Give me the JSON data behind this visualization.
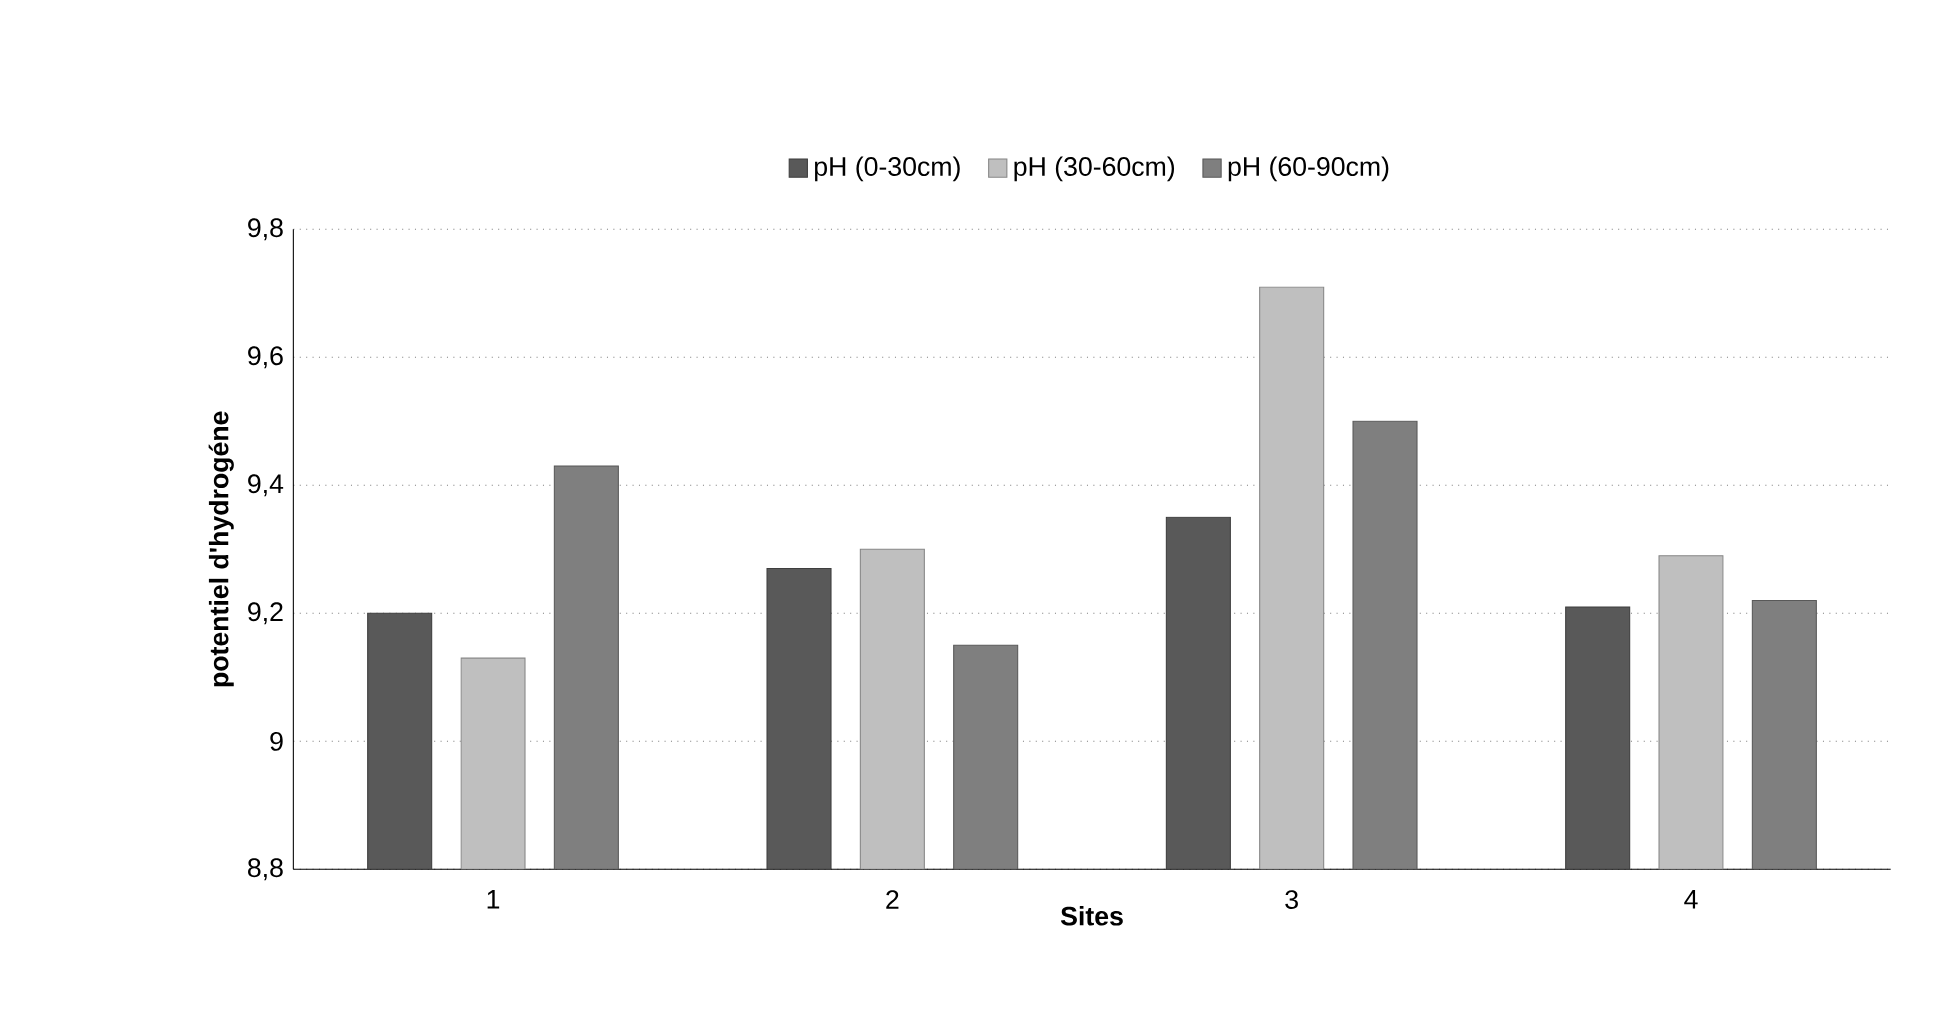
{
  "chart_data": {
    "type": "bar",
    "xlabel": "Sites",
    "ylabel": "potentiel d'hydrogéne",
    "categories": [
      "1",
      "2",
      "3",
      "4"
    ],
    "series": [
      {
        "name": "pH  (0-30cm)",
        "color": "#595959",
        "values": [
          9.2,
          9.27,
          9.35,
          9.21
        ]
      },
      {
        "name": "pH (30-60cm)",
        "color": "#bfbfbf",
        "values": [
          9.13,
          9.3,
          9.71,
          9.29
        ]
      },
      {
        "name": "pH (60-90cm)",
        "color": "#7f7f7f",
        "values": [
          9.43,
          9.15,
          9.5,
          9.22
        ]
      }
    ],
    "ylim": [
      8.8,
      9.8
    ],
    "yticks": [
      {
        "value": 8.8,
        "label": "8,8"
      },
      9,
      {
        "value": 9.2,
        "label": "9,2"
      },
      {
        "value": 9.4,
        "label": "9,4"
      },
      {
        "value": 9.6,
        "label": "9,6"
      },
      {
        "value": 9.8,
        "label": "9,8"
      }
    ],
    "grid": "y",
    "legend": "top"
  }
}
